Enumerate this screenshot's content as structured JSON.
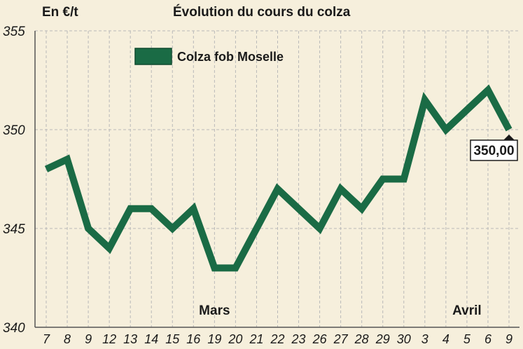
{
  "header": {
    "unit_label": "En €/t",
    "title": "Évolution du cours du colza"
  },
  "colors": {
    "background": "#f6efdc",
    "line": "#1a6b45",
    "grid": "#b9b9b9"
  },
  "chart_data": {
    "type": "line",
    "title": "Évolution du cours du colza",
    "ylabel": "En €/t",
    "xlabel": "",
    "ylim": [
      340,
      355
    ],
    "yticks": [
      340,
      345,
      350,
      355
    ],
    "grid": true,
    "legend_position": "top-left",
    "categories": [
      "7",
      "8",
      "9",
      "12",
      "13",
      "14",
      "15",
      "16",
      "19",
      "20",
      "21",
      "22",
      "23",
      "26",
      "27",
      "28",
      "29",
      "30",
      "3",
      "4",
      "5",
      "6",
      "9"
    ],
    "month_labels": [
      {
        "label": "Mars",
        "category_index": 8
      },
      {
        "label": "Avril",
        "category_index": 20
      }
    ],
    "series": [
      {
        "name": "Colza fob Moselle",
        "color": "#1a6b45",
        "values": [
          348,
          348.5,
          345,
          344,
          346,
          346,
          345,
          346,
          343,
          343,
          345,
          347,
          346,
          345,
          347,
          346,
          347.5,
          347.5,
          351.5,
          350,
          351,
          352,
          350
        ]
      }
    ],
    "annotations": [
      {
        "text": "350,00",
        "category_index": 22,
        "value": 350
      }
    ]
  }
}
